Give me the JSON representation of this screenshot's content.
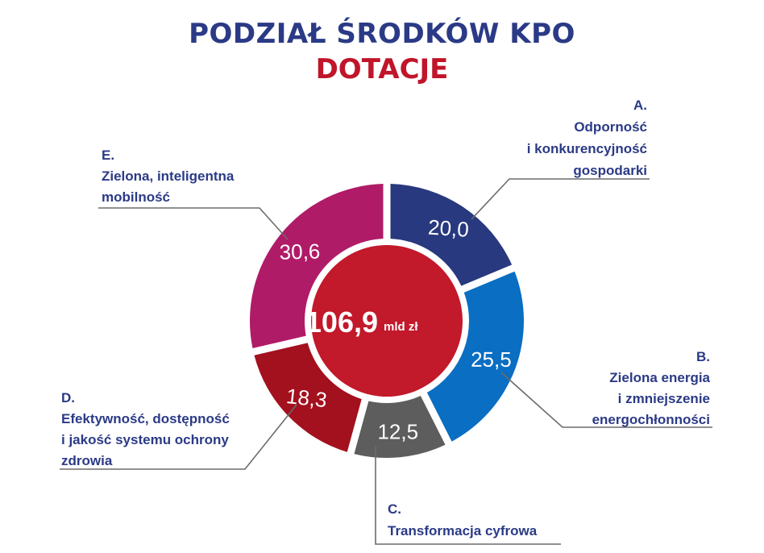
{
  "title": "PODZIAŁ ŚRODKÓW KPO",
  "subtitle": "DOTACJE",
  "center": {
    "value": "106,9",
    "unit": "mld zł"
  },
  "chart_data": {
    "type": "pie",
    "title": "PODZIAŁ ŚRODKÓW KPO",
    "subtitle": "DOTACJE",
    "total": 106.9,
    "total_label": "106,9",
    "unit": "mld zł",
    "slices": [
      {
        "letter": "A.",
        "lines": [
          "Odporność",
          "i konkurencyjność",
          "gospodarki"
        ],
        "value": 20.0,
        "value_label": "20,0",
        "color": "#28397f"
      },
      {
        "letter": "B.",
        "lines": [
          "Zielona energia",
          "i zmniejszenie",
          "energochłonności"
        ],
        "value": 25.5,
        "value_label": "25,5",
        "color": "#0a6ec2"
      },
      {
        "letter": "C.",
        "lines": [
          "Transformacja cyfrowa"
        ],
        "value": 12.5,
        "value_label": "12,5",
        "color": "#5d5d5d"
      },
      {
        "letter": "D.",
        "lines": [
          "Efektywność, dostępność",
          "i jakość systemu ochrony",
          "zdrowia"
        ],
        "value": 18.3,
        "value_label": "18,3",
        "color": "#a3101e"
      },
      {
        "letter": "E.",
        "lines": [
          "Zielona, inteligentna",
          "mobilność"
        ],
        "value": 30.6,
        "value_label": "30,6",
        "color": "#b01b68"
      }
    ],
    "center_color": "#c2192b",
    "line_color": "#6b6b6b"
  }
}
